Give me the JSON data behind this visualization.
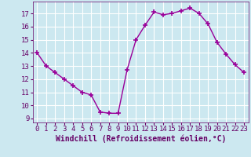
{
  "x": [
    0,
    1,
    2,
    3,
    4,
    5,
    6,
    7,
    8,
    9,
    10,
    11,
    12,
    13,
    14,
    15,
    16,
    17,
    18,
    19,
    20,
    21,
    22,
    23
  ],
  "y": [
    14,
    13,
    12.5,
    12,
    11.5,
    11,
    10.8,
    9.5,
    9.4,
    9.4,
    12.7,
    15,
    16.1,
    17.1,
    16.9,
    17.0,
    17.2,
    17.4,
    17.0,
    16.2,
    14.8,
    13.9,
    13.1,
    12.5
  ],
  "line_color": "#990099",
  "marker": "+",
  "marker_size": 4,
  "marker_lw": 1.2,
  "bg_color": "#cce8f0",
  "grid_color": "#ffffff",
  "xlabel": "Windchill (Refroidissement éolien,°C)",
  "xlabel_fontsize": 7,
  "ylabel_ticks": [
    9,
    10,
    11,
    12,
    13,
    14,
    15,
    16,
    17
  ],
  "xlim": [
    -0.5,
    23.5
  ],
  "ylim": [
    8.7,
    17.9
  ],
  "tick_fontsize": 6.5,
  "line_width": 1.0,
  "text_color": "#660066"
}
